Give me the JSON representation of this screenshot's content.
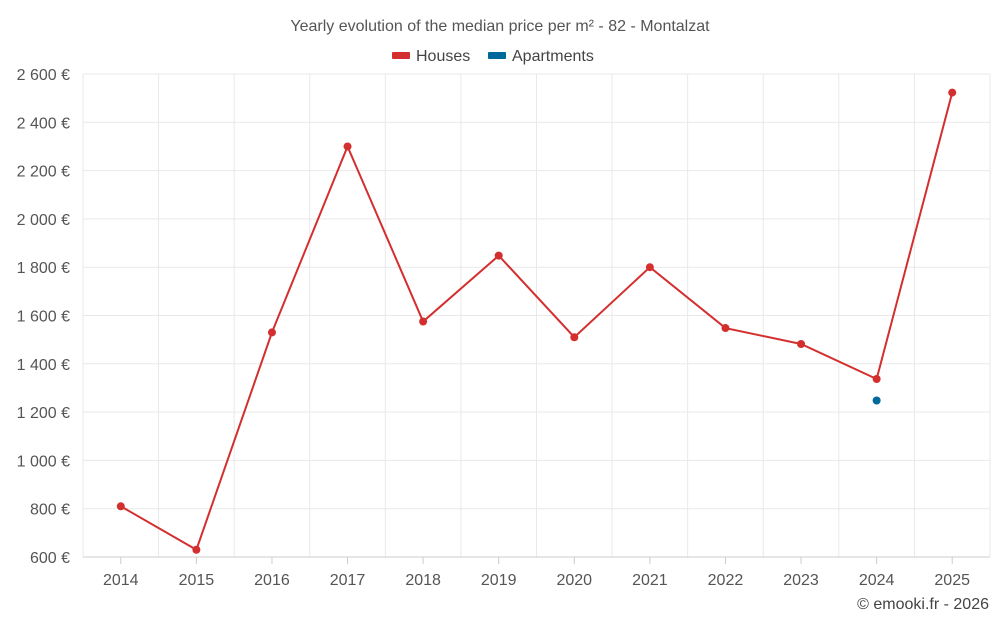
{
  "chart_data": {
    "type": "line",
    "title": "Yearly evolution of the median price per m² - 82 - Montalzat",
    "categories": [
      "2014",
      "2015",
      "2016",
      "2017",
      "2018",
      "2019",
      "2020",
      "2021",
      "2022",
      "2023",
      "2024",
      "2025"
    ],
    "series": [
      {
        "name": "Houses",
        "color": "#d32f2f",
        "values": [
          810,
          630,
          1530,
          2300,
          1575,
          1848,
          1510,
          1800,
          1548,
          1482,
          1337,
          2523
        ]
      },
      {
        "name": "Apartments",
        "color": "#01689b",
        "values": [
          null,
          null,
          null,
          null,
          null,
          null,
          null,
          null,
          null,
          null,
          1248,
          null
        ]
      }
    ],
    "ylim": [
      600,
      2600
    ],
    "yticks": [
      600,
      800,
      1000,
      1200,
      1400,
      1600,
      1800,
      2000,
      2200,
      2400,
      2600
    ],
    "ytick_labels": [
      "600 €",
      "800 €",
      "1 000 €",
      "1 200 €",
      "1 400 €",
      "1 600 €",
      "1 800 €",
      "2 000 €",
      "2 200 €",
      "2 400 €",
      "2 600 €"
    ],
    "xlabel": "",
    "ylabel": "",
    "legend_position": "top-center",
    "grid": true
  },
  "credit": "© emooki.fr - 2026"
}
